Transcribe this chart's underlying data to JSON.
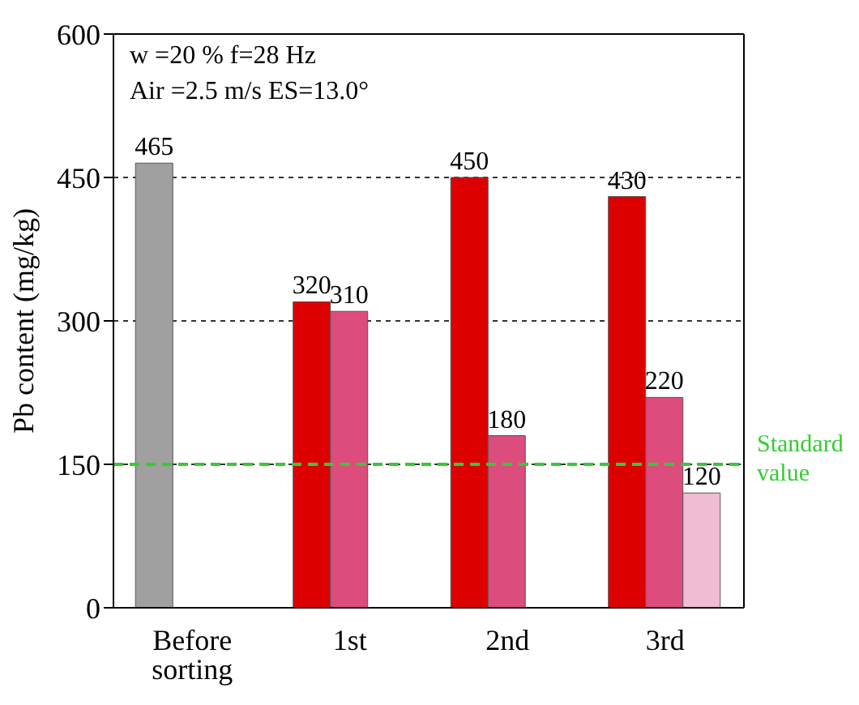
{
  "chart_data": {
    "type": "bar",
    "categories": [
      "Before sorting",
      "1st",
      "2nd",
      "3rd"
    ],
    "series": [
      {
        "colors": [
          "#a0a0a0",
          "#dd0000",
          "#dd0000",
          "#dd0000"
        ],
        "values": [
          465,
          320,
          450,
          430
        ]
      },
      {
        "color": "#dc4c7c",
        "values": [
          null,
          310,
          180,
          220
        ]
      },
      {
        "color": "#f0bcd4",
        "values": [
          null,
          null,
          null,
          120
        ]
      }
    ],
    "ylabel": "Pb content (mg/kg)",
    "ylim": [
      0,
      600
    ],
    "yticks": [
      0,
      150,
      300,
      450,
      600
    ],
    "grid": "y",
    "data_labels": true,
    "ref_lines": [
      {
        "axis": "y",
        "value": 150,
        "label": "Standard value",
        "color": "#33cc33",
        "line_style": "dashed"
      }
    ],
    "annotations": [
      "w =20 %  f=28 Hz",
      "Air =2.5 m/s  ES=13.0°"
    ]
  }
}
